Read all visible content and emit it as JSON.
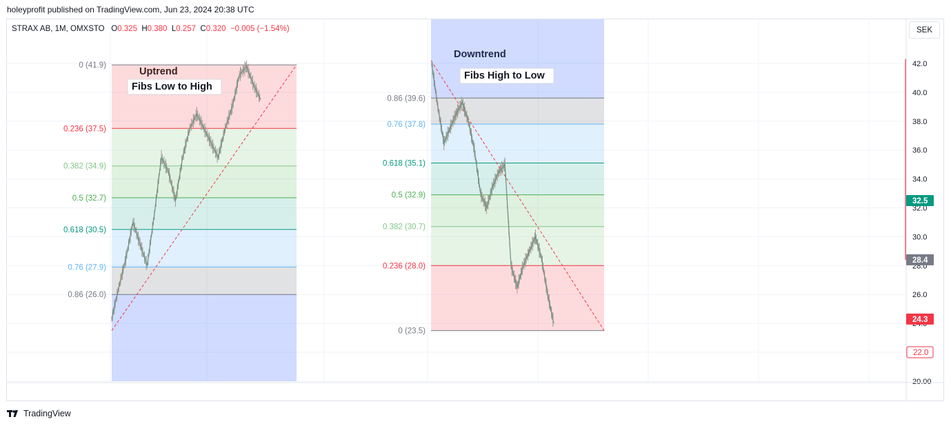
{
  "header": {
    "text": "holeyprofit published on TradingView.com, Jun 23, 2024 20:38 UTC"
  },
  "legend": {
    "symbol": "STRAX AB, 1M, OMXSTO",
    "o_label": "O",
    "o_value": "0.325",
    "h_label": "H",
    "h_value": "0.380",
    "l_label": "L",
    "l_value": "0.257",
    "c_label": "C",
    "c_value": "0.320",
    "change": "−0.005 (−1.54%)"
  },
  "currency": "SEK",
  "footer": {
    "logo_icon": "tradingview-logo-icon",
    "brand": "TradingView"
  },
  "colors": {
    "red": "#f23645",
    "green": "#089981",
    "grid": "#f0f3fa",
    "blue_zone": "#c5d2ff"
  },
  "chart_data": {
    "type": "line",
    "title": "",
    "ylim": [
      20,
      43
    ],
    "y_ticks": [
      "42.0",
      "40.0",
      "38.0",
      "36.0",
      "34.0",
      "32.0",
      "30.0",
      "28.0",
      "26.0",
      "24.0",
      "22.0",
      "20.00"
    ],
    "y_tick_values": [
      42,
      40,
      38,
      36,
      34,
      32,
      30,
      28,
      26,
      24,
      22,
      20
    ],
    "price_badges": [
      {
        "text": "32.5",
        "value": 32.5,
        "color": "#089981",
        "style": "filled"
      },
      {
        "text": "28.4",
        "value": 28.4,
        "color": "#787b86",
        "style": "filled"
      },
      {
        "text": "24.3",
        "value": 24.3,
        "color": "#f23645",
        "style": "filled"
      },
      {
        "text": "22.0",
        "value": 22.0,
        "color": "#f23645",
        "style": "outline"
      }
    ],
    "uptrend": {
      "title": "Uptrend",
      "subtitle": "Fibs Low to High",
      "levels": [
        {
          "label": "0 (41.9)",
          "value": 41.9,
          "color": "#787b86"
        },
        {
          "label": "0.236 (37.5)",
          "value": 37.5,
          "color": "#f23645"
        },
        {
          "label": "0.382 (34.9)",
          "value": 34.9,
          "color": "#81c784"
        },
        {
          "label": "0.5 (32.7)",
          "value": 32.7,
          "color": "#4caf50"
        },
        {
          "label": "0.618 (30.5)",
          "value": 30.5,
          "color": "#089981"
        },
        {
          "label": "0.76 (27.9)",
          "value": 27.9,
          "color": "#64b5f6"
        },
        {
          "label": "0.86 (26.0)",
          "value": 26.0,
          "color": "#787b86"
        }
      ],
      "trend_line": [
        23.5,
        41.9
      ],
      "price_path": [
        24.3,
        26.5,
        28.5,
        31.0,
        29.5,
        28.0,
        31.5,
        35.5,
        34.5,
        32.5,
        35.5,
        37.5,
        38.5,
        37.5,
        36.5,
        35.5,
        37.5,
        39.0,
        41.2,
        41.8,
        40.5,
        39.5
      ]
    },
    "downtrend": {
      "title": "Downtrend",
      "subtitle": "Fibs High to Low",
      "levels": [
        {
          "label": "0.86 (39.6)",
          "value": 39.6,
          "color": "#787b86"
        },
        {
          "label": "0.76 (37.8)",
          "value": 37.8,
          "color": "#64b5f6"
        },
        {
          "label": "0.618 (35.1)",
          "value": 35.1,
          "color": "#089981"
        },
        {
          "label": "0.5 (32.9)",
          "value": 32.9,
          "color": "#4caf50"
        },
        {
          "label": "0.382 (30.7)",
          "value": 30.7,
          "color": "#81c784"
        },
        {
          "label": "0.236 (28.0)",
          "value": 28.0,
          "color": "#f23645"
        },
        {
          "label": "0 (23.5)",
          "value": 23.5,
          "color": "#787b86"
        }
      ],
      "trend_line": [
        42.2,
        23.5
      ],
      "price_path": [
        42.0,
        39.0,
        36.5,
        37.5,
        38.5,
        39.3,
        38.0,
        36.0,
        33.0,
        32.0,
        33.5,
        34.5,
        35.0,
        28.0,
        26.5,
        28.0,
        29.0,
        30.0,
        28.5,
        26.0,
        24.0
      ]
    }
  }
}
